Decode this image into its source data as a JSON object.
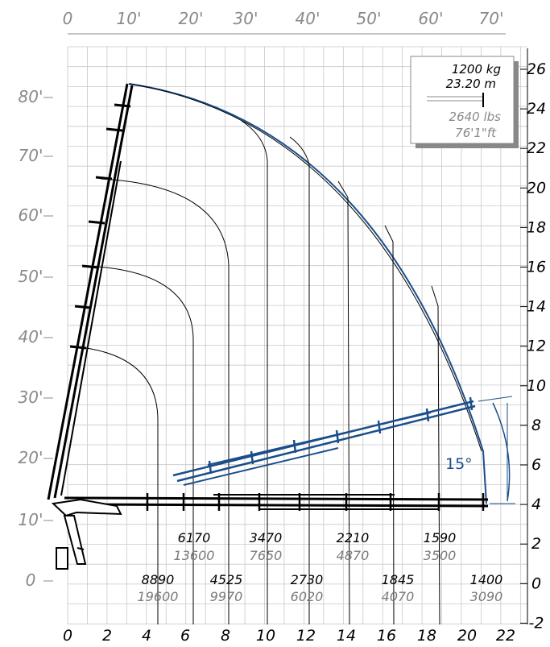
{
  "ft_top": [
    "0",
    "10'",
    "20'",
    "30'",
    "40'",
    "50'",
    "60'",
    "70'"
  ],
  "ft_left": [
    "80'",
    "70'",
    "60'",
    "50'",
    "40'",
    "30'",
    "20'",
    "10'",
    "0"
  ],
  "m_bottom": [
    "0",
    "2",
    "4",
    "6",
    "8",
    "10",
    "12",
    "14",
    "16",
    "18",
    "20",
    "22"
  ],
  "m_right": [
    "26",
    "24",
    "22",
    "20",
    "18",
    "16",
    "14",
    "12",
    "10",
    "8",
    "6",
    "4",
    "2",
    "0",
    "-2"
  ],
  "legend": {
    "kg": "1200 kg",
    "m": "23.20 m",
    "lbs": "2640 lbs",
    "ft": "76'1\"ft"
  },
  "angle_label": "15°",
  "loads_upper": [
    {
      "kg": "6170",
      "lbs": "13600"
    },
    {
      "kg": "3470",
      "lbs": "7650"
    },
    {
      "kg": "2210",
      "lbs": "4870"
    },
    {
      "kg": "1590",
      "lbs": "3500"
    }
  ],
  "loads_lower": [
    {
      "kg": "8890",
      "lbs": "19600"
    },
    {
      "kg": "4525",
      "lbs": "9970"
    },
    {
      "kg": "2730",
      "lbs": "6020"
    },
    {
      "kg": "1845",
      "lbs": "4070"
    },
    {
      "kg": "1400",
      "lbs": "3090"
    }
  ],
  "colors": {
    "boom_blue": "#1a4e8a",
    "grid": "#c8c8c8",
    "legend_shadow": "#888888"
  }
}
